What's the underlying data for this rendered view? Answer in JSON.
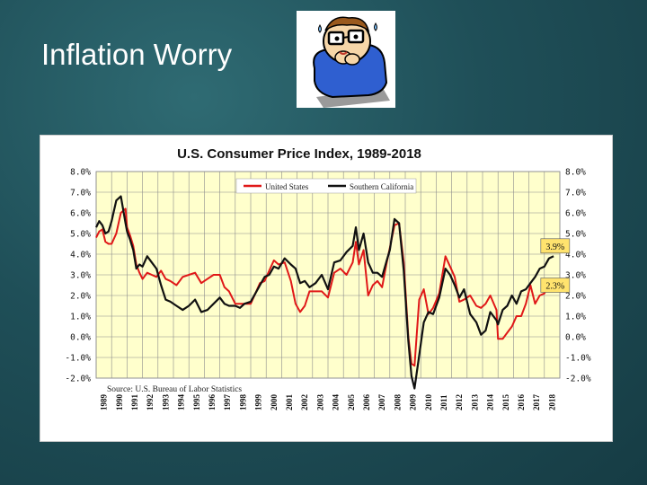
{
  "slide": {
    "title": "Inflation Worry"
  },
  "cartoon": {
    "icon": "worried-man-biting-nails-icon"
  },
  "colors": {
    "background": "#1f4f58",
    "plot_background": "#ffffcc",
    "us_line": "#e01818",
    "socal_line": "#111111",
    "label_box": "#ffe36e"
  },
  "chart_data": {
    "type": "line",
    "title": "U.S. Consumer Price Index, 1989-2018",
    "ylim": [
      -2.0,
      8.0
    ],
    "y_ticks": [
      "8.0%",
      "7.0%",
      "6.0%",
      "5.0%",
      "4.0%",
      "3.0%",
      "2.0%",
      "1.0%",
      "0.0%",
      "-1.0%",
      "-2.0%"
    ],
    "y_ticks_right": [
      "8.0%",
      "7.0%",
      "6.0%",
      "5.0%",
      "4.0%",
      "3.0%",
      "2.0%",
      "1.0%",
      "0.0%",
      "-1.0%",
      "-2.0%"
    ],
    "categories": [
      "1989",
      "1990",
      "1991",
      "1992",
      "1993",
      "1994",
      "1995",
      "1996",
      "1997",
      "1998",
      "1999",
      "2000",
      "2001",
      "2002",
      "2003",
      "2004",
      "2005",
      "2006",
      "2007",
      "2008",
      "2009",
      "2010",
      "2011",
      "2012",
      "2013",
      "2014",
      "2015",
      "2016",
      "2017",
      "2018"
    ],
    "source": "Source: U.S. Bureau of Labor Statistics",
    "legend_location": "top-center",
    "annotations": [
      {
        "text": "3.9%",
        "x": 2018.7,
        "y": 4.4
      },
      {
        "text": "2.3%",
        "x": 2018.7,
        "y": 2.5
      }
    ],
    "series": [
      {
        "name": "United States",
        "color": "#e01818",
        "x": [
          1989.0,
          1989.2,
          1989.4,
          1989.6,
          1989.8,
          1990.0,
          1990.3,
          1990.6,
          1990.9,
          1991.0,
          1991.2,
          1991.4,
          1991.6,
          1991.8,
          1992.0,
          1992.3,
          1992.6,
          1992.9,
          1993.2,
          1993.5,
          1993.8,
          1994.2,
          1994.6,
          1995.0,
          1995.4,
          1995.8,
          1996.2,
          1996.6,
          1997.0,
          1997.3,
          1997.6,
          1998.0,
          1998.3,
          1998.6,
          1999.0,
          1999.3,
          1999.6,
          1999.9,
          2000.2,
          2000.5,
          2000.8,
          2001.2,
          2001.6,
          2001.9,
          2002.2,
          2002.5,
          2002.8,
          2003.2,
          2003.6,
          2004.0,
          2004.4,
          2004.8,
          2005.2,
          2005.6,
          2005.8,
          2006.0,
          2006.3,
          2006.6,
          2006.9,
          2007.2,
          2007.5,
          2007.8,
          2008.0,
          2008.3,
          2008.6,
          2008.9,
          2009.2,
          2009.4,
          2009.6,
          2009.9,
          2010.2,
          2010.5,
          2010.8,
          2011.2,
          2011.6,
          2011.9,
          2012.2,
          2012.5,
          2012.8,
          2013.2,
          2013.6,
          2013.9,
          2014.2,
          2014.5,
          2014.9,
          2015.0,
          2015.3,
          2015.6,
          2015.9,
          2016.2,
          2016.5,
          2016.8,
          2017.1,
          2017.4,
          2017.7,
          2018.0,
          2018.3,
          2018.6
        ],
        "values": [
          4.8,
          5.1,
          5.2,
          4.6,
          4.5,
          4.5,
          5.0,
          6.0,
          6.2,
          5.3,
          4.9,
          4.4,
          3.5,
          3.1,
          2.8,
          3.1,
          3.0,
          2.9,
          3.2,
          2.8,
          2.7,
          2.5,
          2.9,
          3.0,
          3.1,
          2.6,
          2.8,
          3.0,
          3.0,
          2.4,
          2.2,
          1.6,
          1.6,
          1.6,
          1.6,
          2.1,
          2.6,
          2.7,
          3.2,
          3.7,
          3.5,
          3.6,
          2.7,
          1.6,
          1.2,
          1.5,
          2.2,
          2.2,
          2.2,
          1.9,
          3.1,
          3.3,
          3.0,
          3.6,
          4.6,
          3.5,
          4.2,
          2.0,
          2.5,
          2.7,
          2.4,
          3.6,
          4.3,
          5.4,
          5.5,
          3.6,
          0.0,
          -1.3,
          -1.4,
          1.8,
          2.3,
          1.1,
          1.4,
          2.1,
          3.9,
          3.4,
          2.9,
          1.7,
          1.8,
          2.0,
          1.5,
          1.4,
          1.6,
          2.0,
          1.3,
          -0.1,
          -0.1,
          0.2,
          0.5,
          1.0,
          1.0,
          1.6,
          2.5,
          1.6,
          2.0,
          2.1,
          2.6,
          2.3
        ]
      },
      {
        "name": "Southern California",
        "color": "#111111",
        "x": [
          1989.0,
          1989.2,
          1989.4,
          1989.6,
          1989.8,
          1990.0,
          1990.3,
          1990.6,
          1990.9,
          1991.0,
          1991.2,
          1991.4,
          1991.6,
          1991.8,
          1992.0,
          1992.3,
          1992.6,
          1992.9,
          1993.2,
          1993.5,
          1993.8,
          1994.2,
          1994.6,
          1995.0,
          1995.4,
          1995.8,
          1996.2,
          1996.6,
          1997.0,
          1997.3,
          1997.6,
          1998.0,
          1998.3,
          1998.6,
          1999.0,
          1999.3,
          1999.6,
          1999.9,
          2000.2,
          2000.5,
          2000.8,
          2001.2,
          2001.6,
          2001.9,
          2002.2,
          2002.5,
          2002.8,
          2003.2,
          2003.6,
          2004.0,
          2004.4,
          2004.8,
          2005.2,
          2005.6,
          2005.8,
          2006.0,
          2006.3,
          2006.6,
          2006.9,
          2007.2,
          2007.5,
          2007.8,
          2008.0,
          2008.3,
          2008.6,
          2008.9,
          2009.2,
          2009.4,
          2009.6,
          2009.9,
          2010.2,
          2010.5,
          2010.8,
          2011.2,
          2011.6,
          2011.9,
          2012.2,
          2012.5,
          2012.8,
          2013.2,
          2013.6,
          2013.9,
          2014.2,
          2014.5,
          2014.9,
          2015.0,
          2015.3,
          2015.6,
          2015.9,
          2016.2,
          2016.5,
          2016.8,
          2017.1,
          2017.4,
          2017.7,
          2018.0,
          2018.3,
          2018.6
        ],
        "values": [
          5.3,
          5.6,
          5.4,
          5.0,
          5.1,
          5.6,
          6.6,
          6.8,
          5.5,
          5.1,
          4.7,
          4.2,
          3.3,
          3.5,
          3.4,
          3.9,
          3.6,
          3.3,
          2.5,
          1.8,
          1.7,
          1.5,
          1.3,
          1.5,
          1.8,
          1.2,
          1.3,
          1.6,
          1.9,
          1.6,
          1.5,
          1.5,
          1.4,
          1.6,
          1.7,
          2.1,
          2.5,
          2.9,
          3.0,
          3.4,
          3.3,
          3.8,
          3.5,
          3.3,
          2.6,
          2.7,
          2.4,
          2.6,
          3.0,
          2.3,
          3.6,
          3.7,
          4.1,
          4.4,
          5.3,
          4.2,
          5.0,
          3.6,
          3.1,
          3.1,
          2.9,
          3.7,
          4.2,
          5.7,
          5.5,
          3.2,
          -0.2,
          -1.9,
          -2.5,
          -0.9,
          0.7,
          1.2,
          1.1,
          1.9,
          3.3,
          3.0,
          2.5,
          1.9,
          2.3,
          1.1,
          0.7,
          0.1,
          0.3,
          1.2,
          0.8,
          0.6,
          1.3,
          1.5,
          2.0,
          1.6,
          2.2,
          2.3,
          2.6,
          2.9,
          3.3,
          3.4,
          3.8,
          3.9
        ]
      }
    ]
  }
}
